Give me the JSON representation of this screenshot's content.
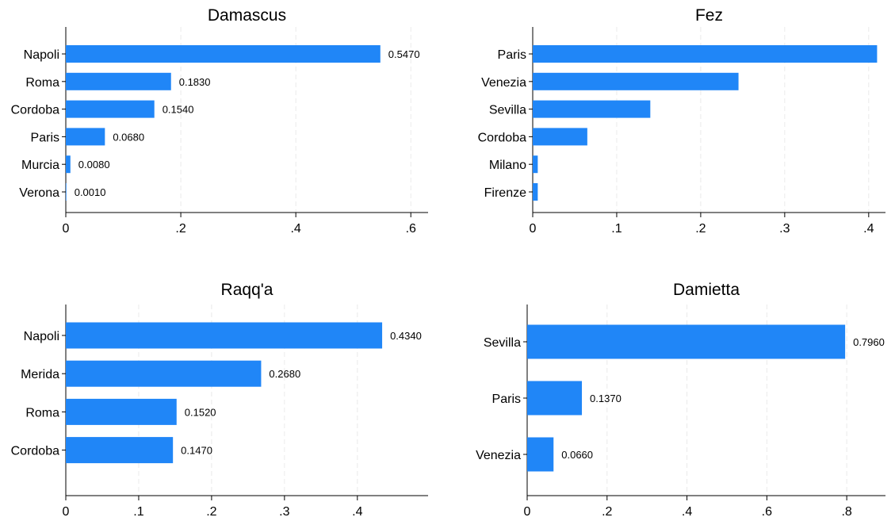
{
  "chart_data": [
    {
      "type": "bar",
      "orientation": "horizontal",
      "title": "Damascus",
      "categories": [
        "Napoli",
        "Roma",
        "Cordoba",
        "Paris",
        "Murcia",
        "Verona"
      ],
      "values": [
        0.547,
        0.183,
        0.154,
        0.068,
        0.008,
        0.001
      ],
      "value_labels": [
        "0.5470",
        "0.1830",
        "0.1540",
        "0.0680",
        "0.0080",
        "0.0010"
      ],
      "xlim": [
        0,
        0.63
      ],
      "xticks": [
        0,
        0.2,
        0.4,
        0.6
      ],
      "xtick_labels": [
        "0",
        ".2",
        ".4",
        ".6"
      ],
      "grid": true,
      "color": "#2086f7"
    },
    {
      "type": "bar",
      "orientation": "horizontal",
      "title": "Fez",
      "categories": [
        "Paris",
        "Venezia",
        "Sevilla",
        "Cordoba",
        "Milano",
        "Firenze"
      ],
      "values": [
        0.41,
        0.245,
        0.14,
        0.065,
        0.006,
        0.006
      ],
      "value_labels": [],
      "xlim": [
        0,
        0.42
      ],
      "xticks": [
        0,
        0.1,
        0.2,
        0.3,
        0.4
      ],
      "xtick_labels": [
        "0",
        ".1",
        ".2",
        ".3",
        ".4"
      ],
      "grid": true,
      "color": "#2086f7"
    },
    {
      "type": "bar",
      "orientation": "horizontal",
      "title": "Raqq'a",
      "categories": [
        "Napoli",
        "Merida",
        "Roma",
        "Cordoba"
      ],
      "values": [
        0.434,
        0.268,
        0.152,
        0.147
      ],
      "value_labels": [
        "0.4340",
        "0.2680",
        "0.1520",
        "0.1470"
      ],
      "xlim": [
        0,
        0.497
      ],
      "xticks": [
        0,
        0.1,
        0.2,
        0.3,
        0.4
      ],
      "xtick_labels": [
        "0",
        ".1",
        ".2",
        ".3",
        ".4"
      ],
      "grid": true,
      "color": "#2086f7"
    },
    {
      "type": "bar",
      "orientation": "horizontal",
      "title": "Damietta",
      "categories": [
        "Sevilla",
        "Paris",
        "Venezia"
      ],
      "values": [
        0.796,
        0.137,
        0.066
      ],
      "value_labels": [
        "0.7960",
        "0.1370",
        "0.0660"
      ],
      "xlim": [
        0,
        0.897
      ],
      "xticks": [
        0,
        0.2,
        0.4,
        0.6,
        0.8
      ],
      "xtick_labels": [
        "0",
        ".2",
        ".4",
        ".6",
        ".8"
      ],
      "grid": true,
      "color": "#2086f7"
    }
  ]
}
